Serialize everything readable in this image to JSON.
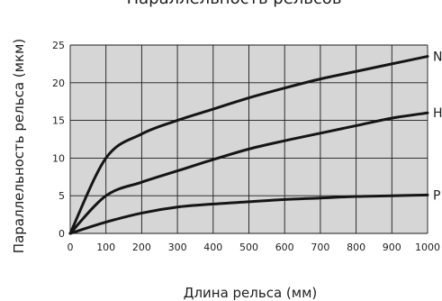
{
  "chart_data": {
    "type": "line",
    "title": "Параллельность рельсов",
    "xlabel": "Длина рельса (мм)",
    "ylabel": "Параллельность рельса (мкм)",
    "xlim": [
      0,
      1000
    ],
    "ylim": [
      0,
      25
    ],
    "x_ticks": [
      "0",
      "100",
      "200",
      "300",
      "400",
      "500",
      "600",
      "700",
      "800",
      "900",
      "1000"
    ],
    "y_ticks": [
      "0",
      "5",
      "10",
      "15",
      "20",
      "25"
    ],
    "grid": true,
    "plot_background": "#d6d6d6",
    "line_color": "#151515",
    "series": [
      {
        "name": "N",
        "x": [
          0,
          100,
          200,
          300,
          400,
          500,
          600,
          700,
          800,
          900,
          1000
        ],
        "y": [
          0,
          10,
          13.2,
          15,
          16.5,
          18,
          19.3,
          20.5,
          21.5,
          22.5,
          23.5
        ]
      },
      {
        "name": "H",
        "x": [
          0,
          100,
          200,
          300,
          400,
          500,
          600,
          700,
          800,
          900,
          1000
        ],
        "y": [
          0,
          5,
          6.8,
          8.3,
          9.8,
          11.2,
          12.3,
          13.3,
          14.3,
          15.3,
          16
        ]
      },
      {
        "name": "P",
        "x": [
          0,
          100,
          200,
          300,
          400,
          500,
          600,
          700,
          800,
          900,
          1000
        ],
        "y": [
          0,
          1.5,
          2.7,
          3.5,
          3.9,
          4.2,
          4.5,
          4.7,
          4.9,
          5.0,
          5.1
        ]
      }
    ]
  }
}
